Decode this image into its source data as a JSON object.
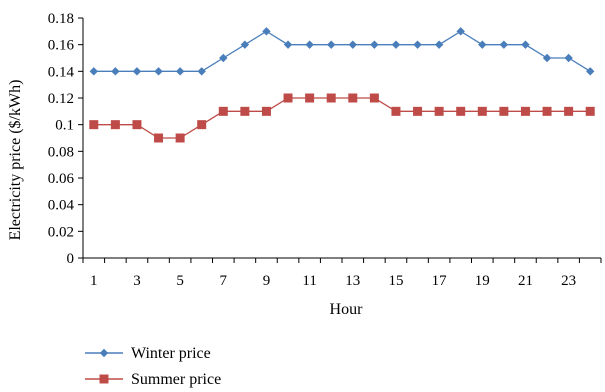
{
  "chart_data": {
    "type": "line",
    "xlabel": "Hour",
    "ylabel": "Electricity price ($/kWh)",
    "x": [
      1,
      2,
      3,
      4,
      5,
      6,
      7,
      8,
      9,
      10,
      11,
      12,
      13,
      14,
      15,
      16,
      17,
      18,
      19,
      20,
      21,
      22,
      23,
      24
    ],
    "x_tick_labels": [
      "1",
      "3",
      "5",
      "7",
      "9",
      "11",
      "13",
      "15",
      "17",
      "19",
      "21",
      "23"
    ],
    "ylim": [
      0,
      0.18
    ],
    "y_tick_labels": [
      "0",
      "0.02",
      "0.04",
      "0.06",
      "0.08",
      "0.1",
      "0.12",
      "0.14",
      "0.16",
      "0.18"
    ],
    "grid": false,
    "legend_position": "bottom-left",
    "series": [
      {
        "name": "Winter price",
        "color": "#4a7ebb",
        "marker": "diamond",
        "values": [
          0.14,
          0.14,
          0.14,
          0.14,
          0.14,
          0.14,
          0.15,
          0.16,
          0.17,
          0.16,
          0.16,
          0.16,
          0.16,
          0.16,
          0.16,
          0.16,
          0.16,
          0.17,
          0.16,
          0.16,
          0.16,
          0.15,
          0.15,
          0.14
        ]
      },
      {
        "name": "Summer price",
        "color": "#be4b48",
        "marker": "square",
        "values": [
          0.1,
          0.1,
          0.1,
          0.09,
          0.09,
          0.1,
          0.11,
          0.11,
          0.11,
          0.12,
          0.12,
          0.12,
          0.12,
          0.12,
          0.11,
          0.11,
          0.11,
          0.11,
          0.11,
          0.11,
          0.11,
          0.11,
          0.11,
          0.11
        ]
      }
    ]
  }
}
